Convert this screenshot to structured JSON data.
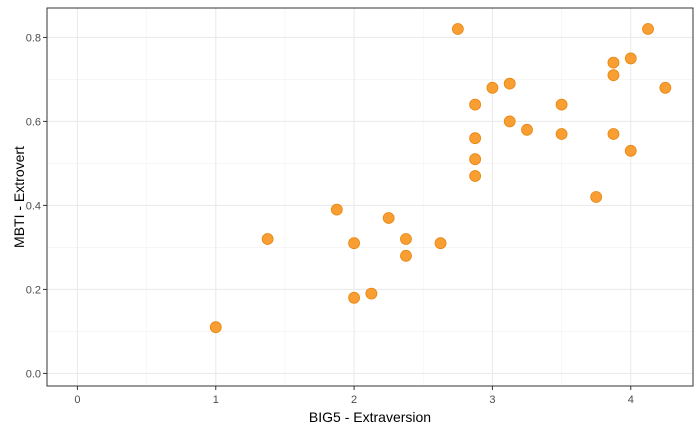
{
  "chart_data": {
    "type": "scatter",
    "xlabel": "BIG5 - Extraversion",
    "ylabel": "MBTI - Extrovert",
    "xlim": [
      -0.22,
      4.45
    ],
    "ylim": [
      -0.03,
      0.87
    ],
    "x_ticks": [
      0,
      1,
      2,
      3,
      4
    ],
    "y_ticks": [
      0.0,
      0.2,
      0.4,
      0.6,
      0.8
    ],
    "x_tick_labels": [
      "0",
      "1",
      "2",
      "3",
      "4"
    ],
    "y_tick_labels": [
      "0.0",
      "0.2",
      "0.4",
      "0.6",
      "0.8"
    ],
    "grid": true,
    "point_color": "#F7941D",
    "points": [
      {
        "x": 1.0,
        "y": 0.11
      },
      {
        "x": 1.375,
        "y": 0.32
      },
      {
        "x": 1.875,
        "y": 0.39
      },
      {
        "x": 2.0,
        "y": 0.31
      },
      {
        "x": 2.0,
        "y": 0.18
      },
      {
        "x": 2.125,
        "y": 0.19
      },
      {
        "x": 2.25,
        "y": 0.37
      },
      {
        "x": 2.375,
        "y": 0.32
      },
      {
        "x": 2.375,
        "y": 0.28
      },
      {
        "x": 2.625,
        "y": 0.31
      },
      {
        "x": 2.75,
        "y": 0.82
      },
      {
        "x": 2.875,
        "y": 0.64
      },
      {
        "x": 2.875,
        "y": 0.56
      },
      {
        "x": 2.875,
        "y": 0.51
      },
      {
        "x": 2.875,
        "y": 0.47
      },
      {
        "x": 3.0,
        "y": 0.68
      },
      {
        "x": 3.125,
        "y": 0.69
      },
      {
        "x": 3.125,
        "y": 0.6
      },
      {
        "x": 3.25,
        "y": 0.58
      },
      {
        "x": 3.5,
        "y": 0.64
      },
      {
        "x": 3.5,
        "y": 0.57
      },
      {
        "x": 3.75,
        "y": 0.42
      },
      {
        "x": 3.875,
        "y": 0.74
      },
      {
        "x": 3.875,
        "y": 0.71
      },
      {
        "x": 3.875,
        "y": 0.57
      },
      {
        "x": 4.0,
        "y": 0.75
      },
      {
        "x": 4.0,
        "y": 0.53
      },
      {
        "x": 4.125,
        "y": 0.82
      },
      {
        "x": 4.25,
        "y": 0.68
      }
    ]
  }
}
